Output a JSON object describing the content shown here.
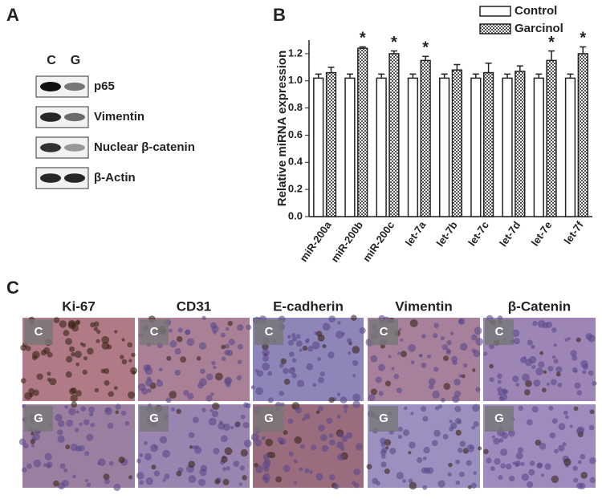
{
  "panel_a": {
    "label": "A",
    "lanes": [
      "C",
      "G"
    ],
    "blots": [
      "p65",
      "Vimentin",
      "Nuclear β-catenin",
      "β-Actin"
    ]
  },
  "chart_data": {
    "type": "bar",
    "panel_label": "B",
    "y_label": "Relative miRNA expression",
    "categories": [
      "miR-200a",
      "miR-200b",
      "miR-200c",
      "let-7a",
      "let-7b",
      "let-7c",
      "let-7d",
      "let-7e",
      "let-7f"
    ],
    "series": [
      {
        "name": "Control",
        "color": "#ffffff",
        "values": [
          1.02,
          1.02,
          1.02,
          1.02,
          1.02,
          1.02,
          1.02,
          1.02,
          1.02
        ],
        "errors": [
          0.03,
          0.03,
          0.03,
          0.03,
          0.03,
          0.03,
          0.03,
          0.03,
          0.03
        ]
      },
      {
        "name": "Garcinol",
        "color": "#8a8a8a",
        "values": [
          1.06,
          1.24,
          1.2,
          1.15,
          1.08,
          1.06,
          1.07,
          1.15,
          1.2
        ],
        "errors": [
          0.04,
          0.01,
          0.02,
          0.03,
          0.04,
          0.07,
          0.04,
          0.07,
          0.05
        ]
      }
    ],
    "annotations": [
      {
        "text": "*",
        "category": "miR-200b"
      },
      {
        "text": "*",
        "category": "miR-200c"
      },
      {
        "text": "*",
        "category": "let-7a"
      },
      {
        "text": "*",
        "category": "let-7e"
      },
      {
        "text": "*",
        "category": "let-7f"
      }
    ],
    "ylim": [
      0,
      1.3
    ],
    "yticks": [
      {
        "value": 0,
        "label": "0.0"
      },
      {
        "value": 0.2,
        "label": "0.2"
      },
      {
        "value": 0.4,
        "label": "0.4"
      },
      {
        "value": 0.6,
        "label": "0.6"
      },
      {
        "value": 0.8,
        "label": "0.8"
      },
      {
        "value": 1,
        "label": "1.0"
      },
      {
        "value": 1.2,
        "label": "1.2"
      }
    ],
    "legend": "top-right"
  },
  "panel_c": {
    "label": "C",
    "columns": [
      "Ki-67",
      "CD31",
      "E-cadherin",
      "Vimentin",
      "β-Catenin"
    ],
    "rows": [
      "C",
      "G"
    ]
  }
}
